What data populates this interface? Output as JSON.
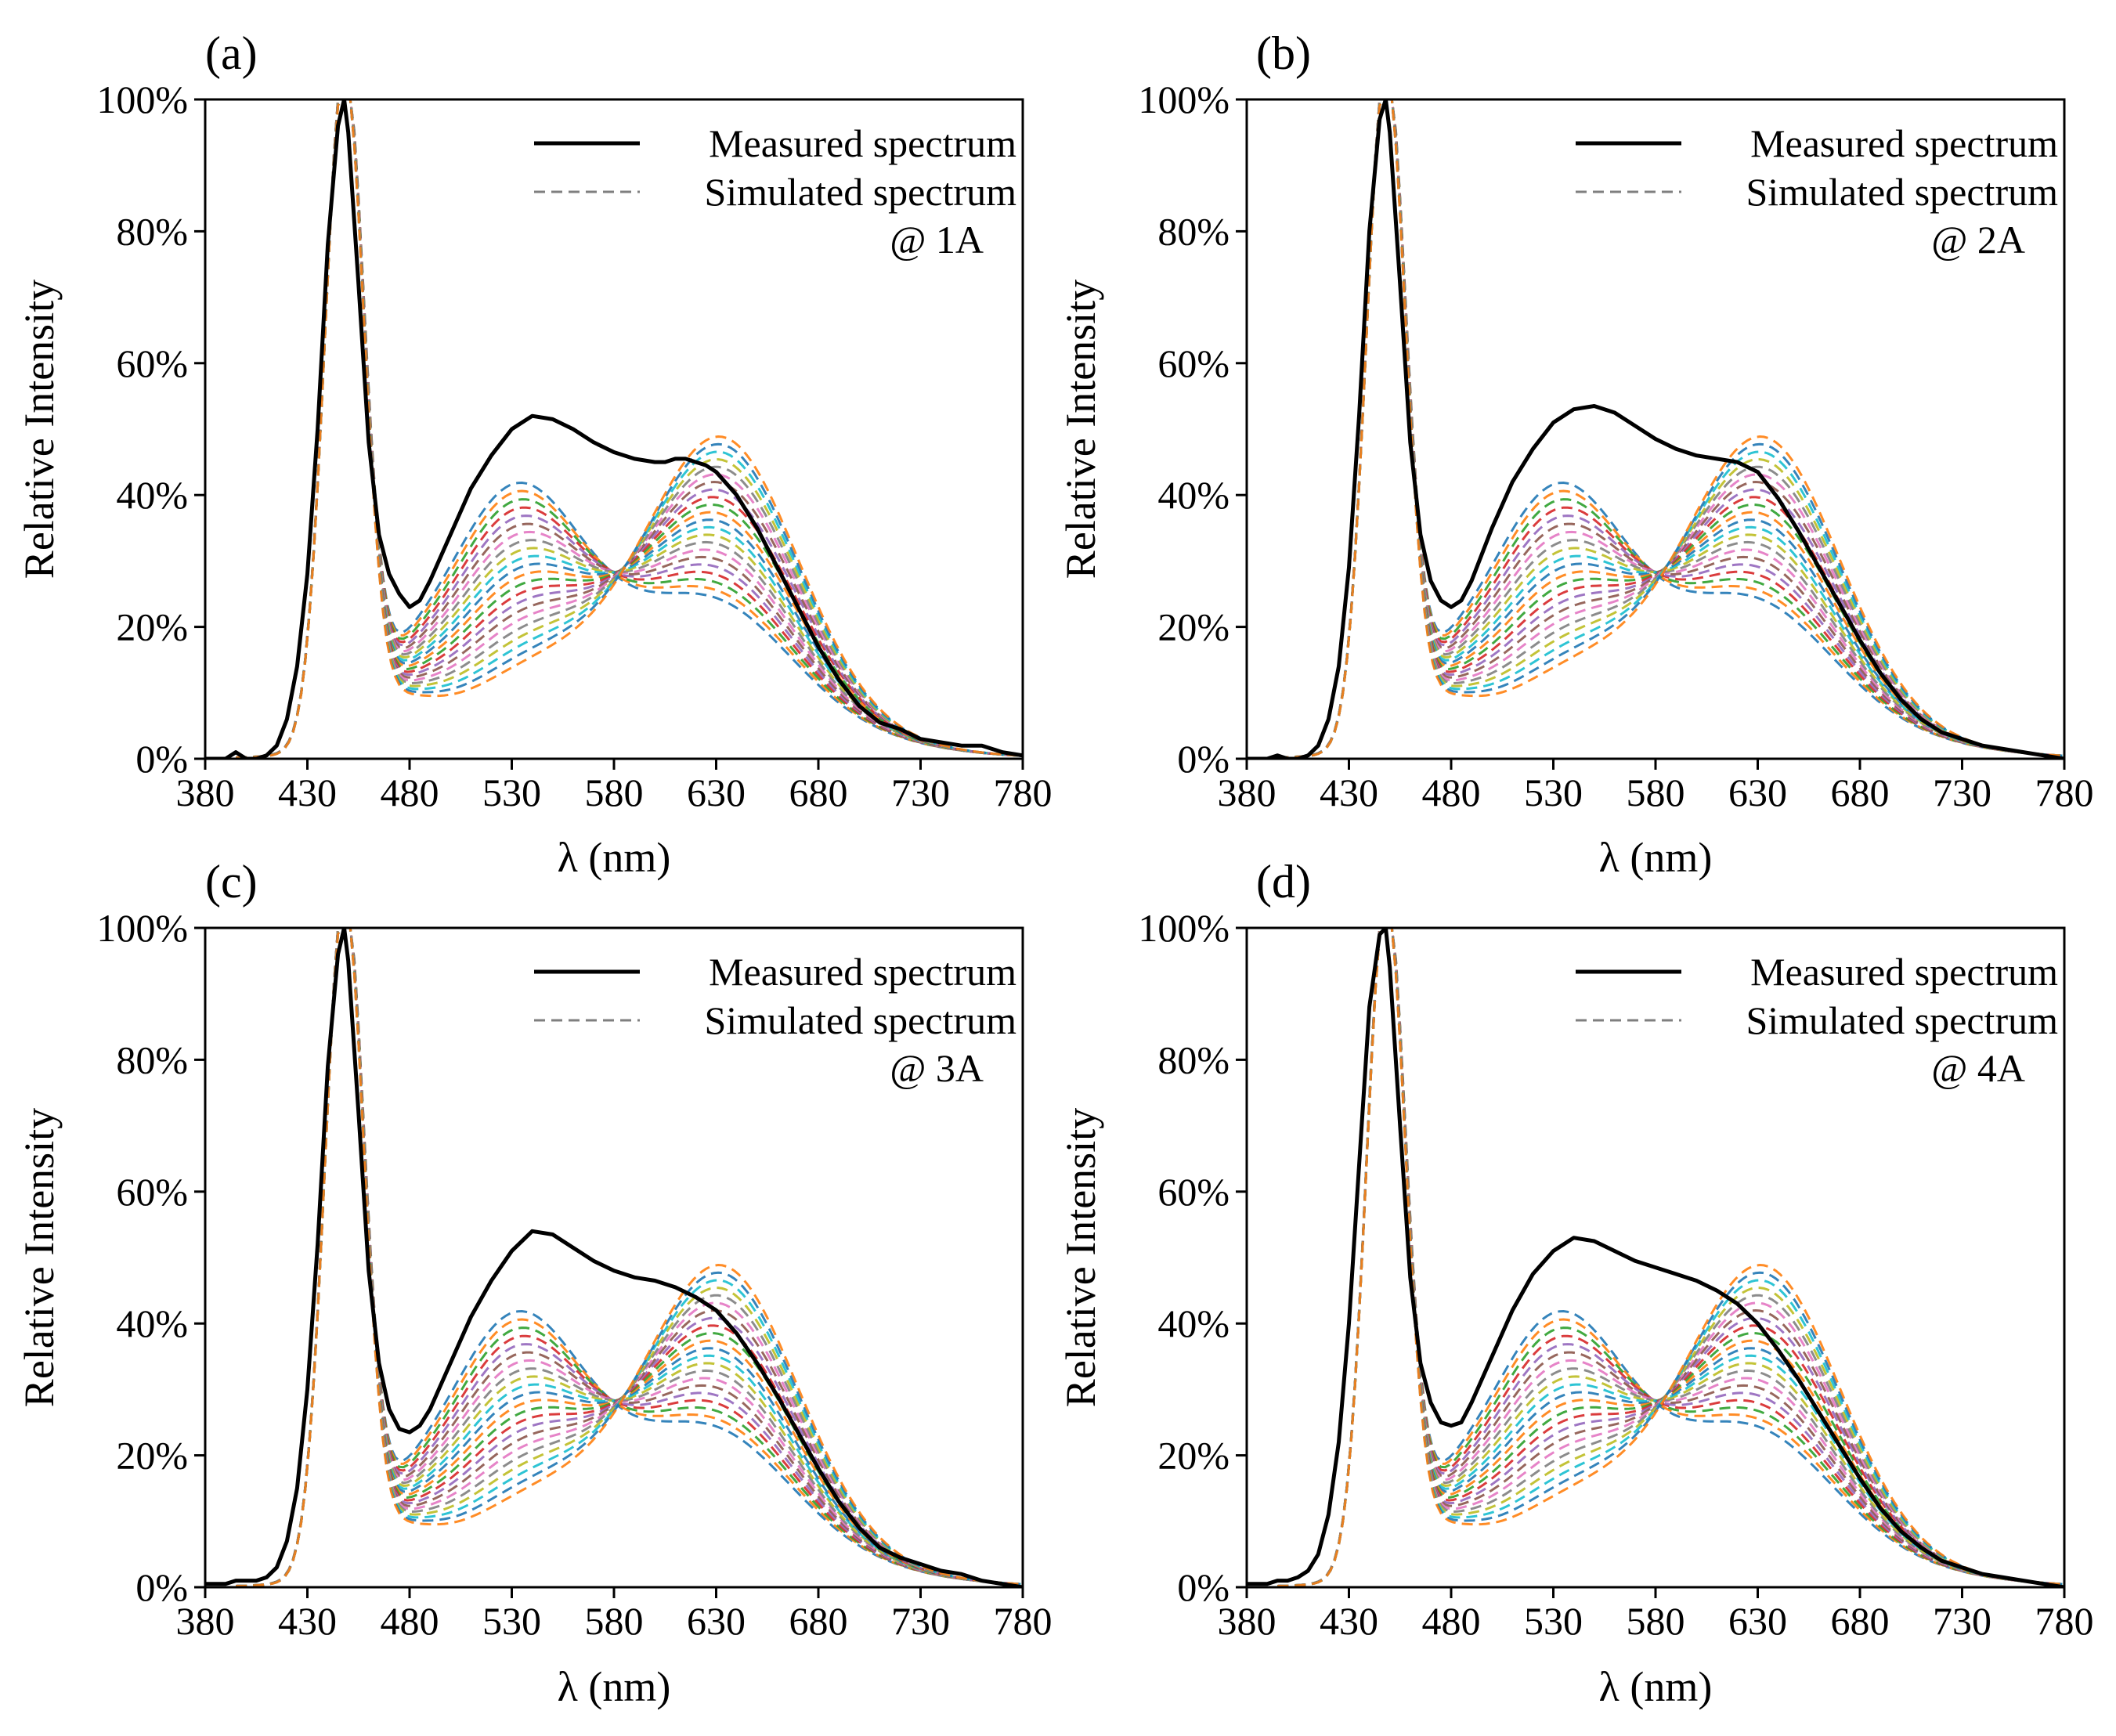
{
  "figure": {
    "x_axis_label": "λ (nm)",
    "y_axis_label": "Relative Intensity",
    "legend": {
      "measured": "Measured spectrum",
      "simulated": "Simulated spectrum"
    }
  },
  "sim_palette": [
    "#1f77b4",
    "#ff7f0e",
    "#2ca02c",
    "#d62728",
    "#9467bd",
    "#8c564b",
    "#e377c2",
    "#7f7f7f",
    "#bcbd22",
    "#17becf"
  ],
  "chart_data": [
    {
      "panel": "(a)",
      "annotation": "@ 1A",
      "type": "line",
      "xlim": [
        380,
        780
      ],
      "ylim": [
        0,
        100
      ],
      "xticks": [
        380,
        430,
        480,
        530,
        580,
        630,
        680,
        730,
        780
      ],
      "yticks": [
        0,
        20,
        40,
        60,
        80,
        100
      ],
      "xtick_labels": [
        "380",
        "430",
        "480",
        "530",
        "580",
        "630",
        "680",
        "730",
        "780"
      ],
      "ytick_labels": [
        "0%",
        "20%",
        "40%",
        "60%",
        "80%",
        "100%"
      ],
      "measured": {
        "x": [
          380,
          390,
          395,
          400,
          405,
          410,
          415,
          420,
          425,
          430,
          435,
          440,
          445,
          448,
          450,
          455,
          460,
          465,
          470,
          475,
          480,
          485,
          490,
          500,
          510,
          520,
          530,
          540,
          550,
          560,
          570,
          580,
          590,
          600,
          605,
          610,
          615,
          620,
          625,
          630,
          640,
          650,
          660,
          670,
          680,
          690,
          700,
          710,
          720,
          730,
          740,
          750,
          760,
          770,
          780
        ],
        "y": [
          0,
          0,
          1,
          0,
          0,
          0.5,
          2,
          6,
          14,
          28,
          50,
          78,
          96,
          100,
          95,
          72,
          48,
          34,
          28,
          25,
          23,
          24,
          27,
          34,
          41,
          46,
          50,
          52,
          51.5,
          50,
          48,
          46.5,
          45.5,
          45,
          45,
          45.5,
          45.5,
          45,
          44.5,
          43.5,
          40,
          35,
          29,
          23,
          17,
          12,
          8,
          5.5,
          4.5,
          3,
          2.5,
          2,
          2,
          1,
          0.5
        ]
      }
    },
    {
      "panel": "(b)",
      "annotation": "@ 2A",
      "type": "line",
      "xlim": [
        380,
        780
      ],
      "ylim": [
        0,
        100
      ],
      "xticks": [
        380,
        430,
        480,
        530,
        580,
        630,
        680,
        730,
        780
      ],
      "yticks": [
        0,
        20,
        40,
        60,
        80,
        100
      ],
      "xtick_labels": [
        "380",
        "430",
        "480",
        "530",
        "580",
        "630",
        "680",
        "730",
        "780"
      ],
      "ytick_labels": [
        "0%",
        "20%",
        "40%",
        "60%",
        "80%",
        "100%"
      ],
      "measured": {
        "x": [
          380,
          390,
          395,
          400,
          405,
          410,
          415,
          420,
          425,
          430,
          435,
          440,
          445,
          448,
          450,
          455,
          460,
          465,
          470,
          475,
          480,
          485,
          490,
          500,
          510,
          520,
          530,
          540,
          550,
          560,
          570,
          580,
          590,
          600,
          610,
          620,
          630,
          640,
          650,
          660,
          670,
          680,
          690,
          700,
          710,
          720,
          730,
          740,
          750,
          760,
          770,
          780
        ],
        "y": [
          0,
          0,
          0.5,
          0,
          0,
          0.5,
          2,
          6,
          14,
          29,
          52,
          80,
          97,
          100,
          95,
          72,
          48,
          34,
          27,
          24,
          23,
          24,
          27,
          35,
          42,
          47,
          51,
          53,
          53.5,
          52.5,
          50.5,
          48.5,
          47,
          46,
          45.5,
          45,
          43.5,
          39.5,
          34.5,
          29,
          23.5,
          18,
          13,
          9,
          6,
          4,
          3,
          2,
          1.5,
          1,
          0.5,
          0
        ]
      }
    },
    {
      "panel": "(c)",
      "annotation": "@ 3A",
      "type": "line",
      "xlim": [
        380,
        780
      ],
      "ylim": [
        0,
        100
      ],
      "xticks": [
        380,
        430,
        480,
        530,
        580,
        630,
        680,
        730,
        780
      ],
      "yticks": [
        0,
        20,
        40,
        60,
        80,
        100
      ],
      "xtick_labels": [
        "380",
        "430",
        "480",
        "530",
        "580",
        "630",
        "680",
        "730",
        "780"
      ],
      "ytick_labels": [
        "0%",
        "20%",
        "40%",
        "60%",
        "80%",
        "100%"
      ],
      "measured": {
        "x": [
          380,
          390,
          395,
          400,
          405,
          410,
          415,
          420,
          425,
          430,
          435,
          440,
          445,
          448,
          450,
          455,
          460,
          465,
          470,
          475,
          480,
          485,
          490,
          500,
          510,
          520,
          530,
          540,
          550,
          560,
          570,
          580,
          590,
          600,
          610,
          620,
          630,
          640,
          650,
          660,
          670,
          680,
          690,
          700,
          710,
          720,
          730,
          740,
          750,
          760,
          770,
          780
        ],
        "y": [
          0.5,
          0.5,
          1,
          1,
          1,
          1.5,
          3,
          7,
          15,
          30,
          52,
          79,
          96,
          100,
          95,
          72,
          48,
          34,
          27,
          24,
          23.5,
          24.5,
          27,
          34,
          41,
          46.5,
          51,
          54,
          53.5,
          51.5,
          49.5,
          48,
          47,
          46.5,
          45.5,
          44,
          42,
          38.5,
          34,
          29,
          23.5,
          18,
          13,
          9,
          6,
          4.5,
          3.5,
          2.5,
          2,
          1,
          0.5,
          0
        ]
      }
    },
    {
      "panel": "(d)",
      "annotation": "@ 4A",
      "type": "line",
      "xlim": [
        380,
        780
      ],
      "ylim": [
        0,
        100
      ],
      "xticks": [
        380,
        430,
        480,
        530,
        580,
        630,
        680,
        730,
        780
      ],
      "yticks": [
        0,
        20,
        40,
        60,
        80,
        100
      ],
      "xtick_labels": [
        "380",
        "430",
        "480",
        "530",
        "580",
        "630",
        "680",
        "730",
        "780"
      ],
      "ytick_labels": [
        "0%",
        "20%",
        "40%",
        "60%",
        "80%",
        "100%"
      ],
      "measured": {
        "x": [
          380,
          390,
          395,
          400,
          405,
          410,
          415,
          420,
          425,
          430,
          435,
          440,
          445,
          448,
          450,
          455,
          460,
          465,
          470,
          475,
          480,
          485,
          490,
          500,
          510,
          520,
          530,
          540,
          550,
          560,
          570,
          580,
          590,
          600,
          610,
          620,
          630,
          640,
          650,
          660,
          670,
          680,
          690,
          700,
          710,
          720,
          730,
          740,
          750,
          760,
          770,
          780
        ],
        "y": [
          0.5,
          0.5,
          1,
          1,
          1.5,
          2.5,
          5,
          11,
          22,
          40,
          64,
          88,
          99,
          100,
          94,
          70,
          47,
          34,
          28,
          25,
          24.5,
          25,
          28,
          35,
          42,
          47.5,
          51,
          53,
          52.5,
          51,
          49.5,
          48.5,
          47.5,
          46.5,
          45,
          43,
          40,
          36,
          31.5,
          26.5,
          21.5,
          16.5,
          12,
          8.5,
          6,
          4,
          3,
          2,
          1.5,
          1,
          0.5,
          0
        ]
      }
    }
  ]
}
